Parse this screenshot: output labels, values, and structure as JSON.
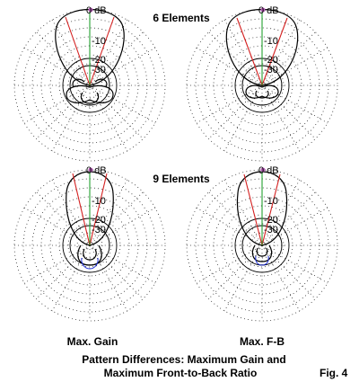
{
  "headings": {
    "top": "6 Elements",
    "middle": "9 Elements"
  },
  "columns": {
    "left": "Max. Gain",
    "right": "Max. F-B"
  },
  "caption": {
    "line1": "Pattern Differences:  Maximum Gain and",
    "line2": "Maximum Front-to-Back Ratio",
    "fig": "Fig. 4"
  },
  "ring_labels": [
    "0 dB",
    "-10",
    "-20",
    "-30"
  ],
  "colors": {
    "pattern": "#000000",
    "beamwidth": "#d42020",
    "boresight": "#22a030",
    "rear": "#1a2bd6",
    "marker": "#b45ab4"
  },
  "panels": [
    {
      "name": "6 Elements, Max. Gain",
      "front_beamwidth_deg": 38,
      "rear_lobe": true
    },
    {
      "name": "6 Elements, Max. F-B",
      "front_beamwidth_deg": 40,
      "rear_lobe": true
    },
    {
      "name": "9 Elements, Max. Gain",
      "front_beamwidth_deg": 28,
      "rear_lobe": true
    },
    {
      "name": "9 Elements, Max. F-B",
      "front_beamwidth_deg": 30,
      "rear_lobe": true
    }
  ]
}
